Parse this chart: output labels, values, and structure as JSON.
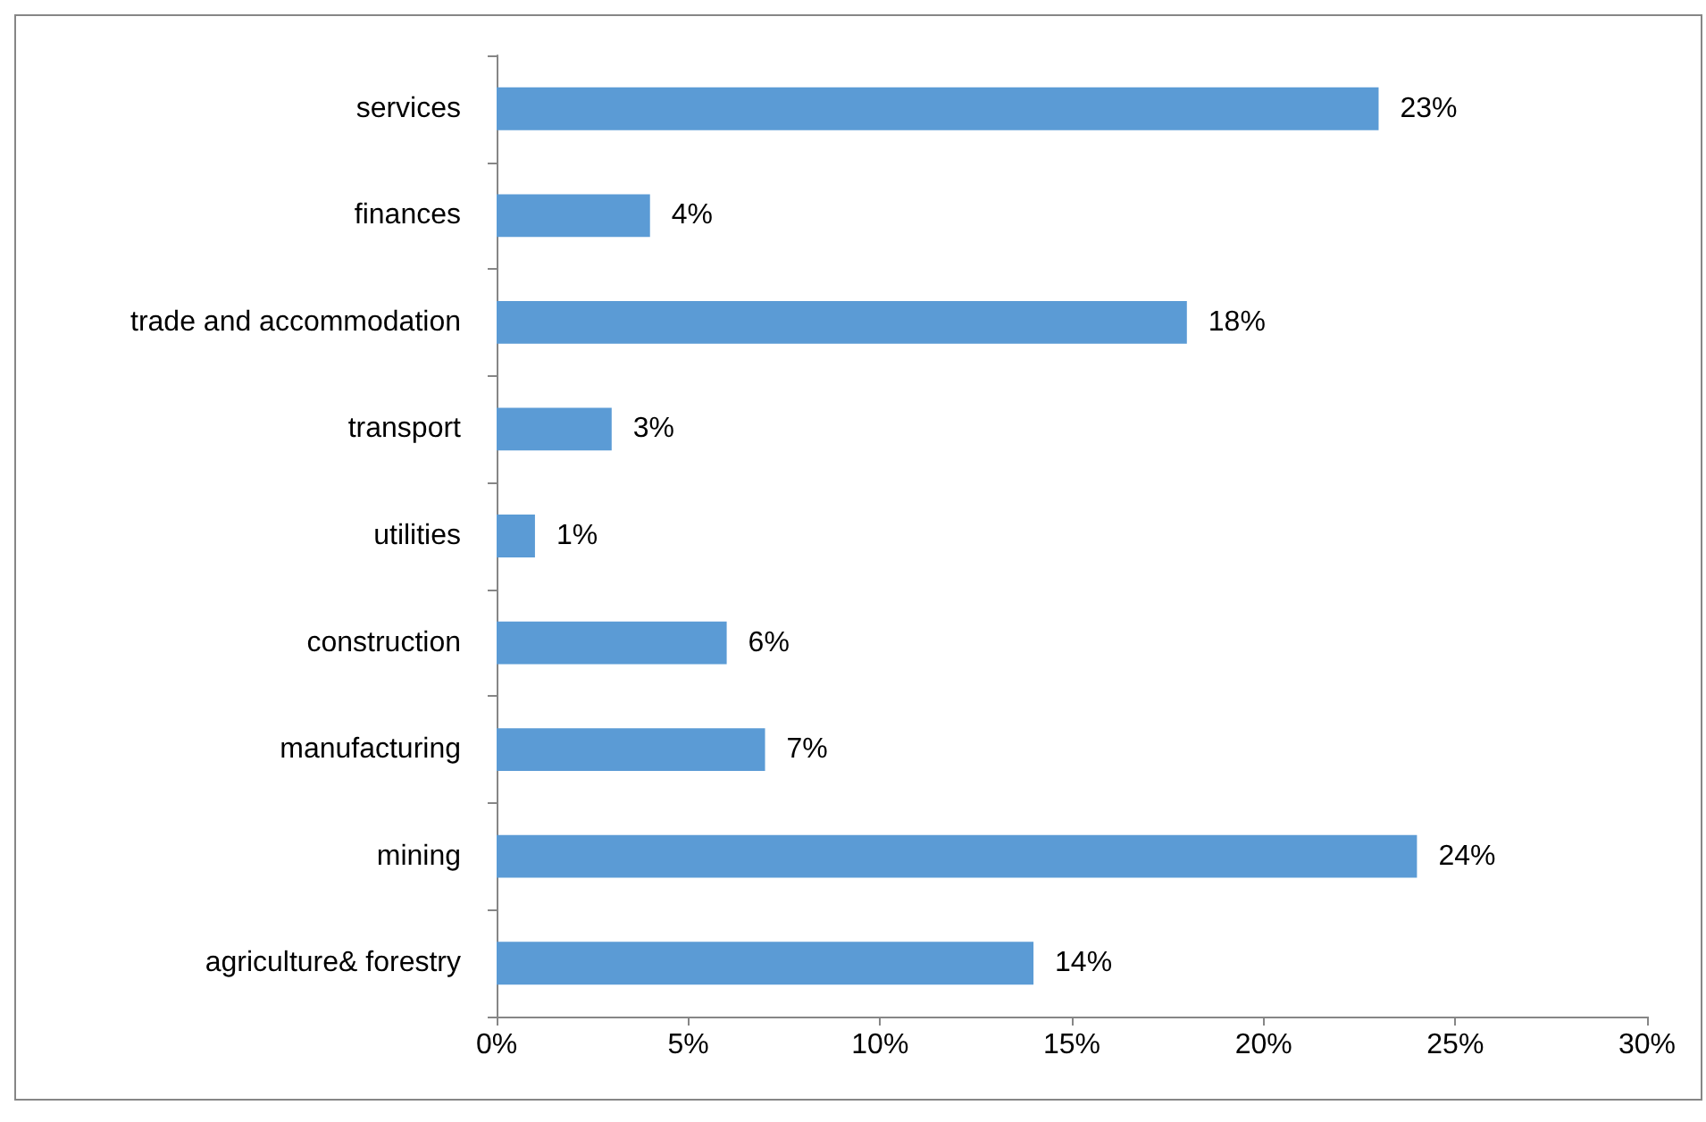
{
  "chart_data": {
    "type": "bar",
    "orientation": "horizontal",
    "categories": [
      "services",
      "finances",
      "trade and accommodation",
      "transport",
      "utilities",
      "construction",
      "manufacturing",
      "mining",
      "agriculture& forestry"
    ],
    "values": [
      23,
      4,
      18,
      3,
      1,
      6,
      7,
      24,
      14
    ],
    "value_labels": [
      "23%",
      "4%",
      "18%",
      "3%",
      "1%",
      "6%",
      "7%",
      "24%",
      "14%"
    ],
    "color": "#5b9bd5",
    "xlim": [
      0,
      30
    ],
    "xticks": [
      {
        "value": 0,
        "label": "0%"
      },
      {
        "value": 5,
        "label": "5%"
      },
      {
        "value": 10,
        "label": "10%"
      },
      {
        "value": 15,
        "label": "15%"
      },
      {
        "value": 20,
        "label": "20%"
      },
      {
        "value": 25,
        "label": "25%"
      },
      {
        "value": 30,
        "label": "30%"
      }
    ],
    "grid": false
  }
}
